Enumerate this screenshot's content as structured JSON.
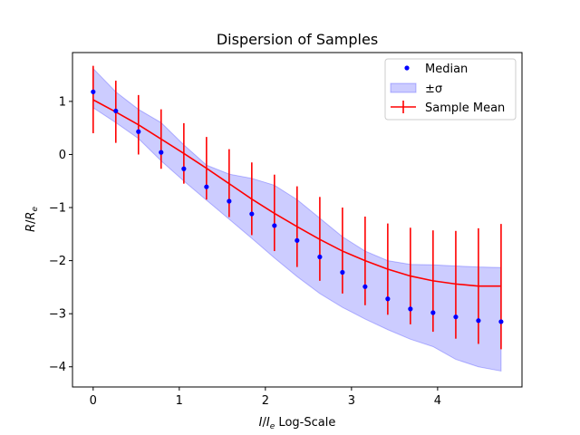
{
  "chart_data": {
    "type": "line",
    "title": "Dispersion of Samples",
    "xlabel": "I/I_e Log-Scale",
    "ylabel": "R/R_e",
    "xlim": [
      -0.24,
      4.98
    ],
    "ylim": [
      -4.38,
      1.92
    ],
    "xticks": [
      0,
      1,
      2,
      3,
      4
    ],
    "yticks": [
      -4,
      -3,
      -2,
      -1,
      0,
      1
    ],
    "grid": false,
    "legend": "top-right",
    "x": [
      0.0,
      0.263,
      0.526,
      0.789,
      1.053,
      1.316,
      1.579,
      1.842,
      2.105,
      2.368,
      2.632,
      2.895,
      3.158,
      3.421,
      3.684,
      3.947,
      4.211,
      4.474,
      4.737
    ],
    "series": [
      {
        "name": "Median",
        "color": "#0000ff",
        "values": [
          1.18,
          0.82,
          0.43,
          0.04,
          -0.27,
          -0.61,
          -0.88,
          -1.12,
          -1.34,
          -1.62,
          -1.93,
          -2.22,
          -2.49,
          -2.72,
          -2.91,
          -2.98,
          -3.06,
          -3.13,
          -3.15
        ]
      },
      {
        "name": "±σ",
        "color": "#0000ff",
        "lower": [
          0.88,
          0.6,
          0.3,
          -0.12,
          -0.5,
          -0.86,
          -1.22,
          -1.58,
          -1.95,
          -2.3,
          -2.62,
          -2.88,
          -3.1,
          -3.3,
          -3.48,
          -3.62,
          -3.86,
          -4.0,
          -4.08
        ],
        "upper": [
          1.62,
          1.18,
          0.85,
          0.6,
          0.18,
          -0.2,
          -0.37,
          -0.45,
          -0.58,
          -0.85,
          -1.2,
          -1.55,
          -1.82,
          -2.0,
          -2.07,
          -2.08,
          -2.1,
          -2.12,
          -2.13
        ]
      },
      {
        "name": "Sample Mean",
        "color": "#ff0000",
        "values": [
          1.03,
          0.8,
          0.56,
          0.29,
          0.02,
          -0.26,
          -0.55,
          -0.84,
          -1.11,
          -1.36,
          -1.6,
          -1.82,
          -2.0,
          -2.16,
          -2.29,
          -2.38,
          -2.44,
          -2.48,
          -2.48
        ],
        "err_low": [
          0.4,
          0.22,
          0.0,
          -0.27,
          -0.55,
          -0.85,
          -1.18,
          -1.52,
          -1.82,
          -2.12,
          -2.38,
          -2.62,
          -2.84,
          -3.02,
          -3.2,
          -3.34,
          -3.47,
          -3.57,
          -3.67
        ],
        "err_high": [
          1.67,
          1.39,
          1.12,
          0.85,
          0.59,
          0.33,
          0.1,
          -0.15,
          -0.38,
          -0.6,
          -0.8,
          -1.0,
          -1.17,
          -1.3,
          -1.38,
          -1.43,
          -1.44,
          -1.39,
          -1.31
        ]
      }
    ]
  }
}
